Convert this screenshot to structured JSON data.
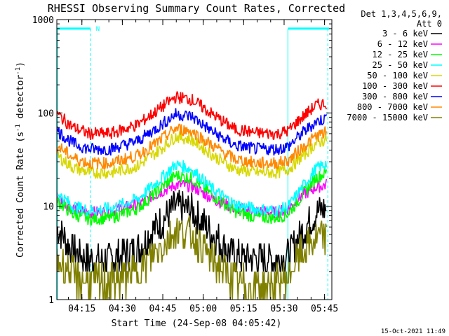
{
  "chart_data": {
    "type": "line",
    "title": "RHESSI Observing Summary Count Rates, Corrected",
    "xlabel": "Start Time (24-Sep-08 04:05:42)",
    "ylabel_main": "Corrected Count Rate (s",
    "ylabel_exp1": "-1",
    "ylabel_mid": " detector",
    "ylabel_exp2": "-1",
    "ylabel_end": ")",
    "y_scale": "log",
    "ylim": [
      1,
      1000
    ],
    "y_ticks": [
      {
        "value": 1,
        "label": "1"
      },
      {
        "value": 10,
        "label": "10"
      },
      {
        "value": 100,
        "label": "100"
      },
      {
        "value": 1000,
        "label": "1000"
      }
    ],
    "xlim_minutes": [
      0,
      102
    ],
    "x_ticks": [
      {
        "minute": 9.3,
        "label": "04:15"
      },
      {
        "minute": 24.3,
        "label": "04:30"
      },
      {
        "minute": 39.3,
        "label": "04:45"
      },
      {
        "minute": 54.3,
        "label": "05:00"
      },
      {
        "minute": 69.3,
        "label": "05:15"
      },
      {
        "minute": 84.3,
        "label": "05:30"
      },
      {
        "minute": 99.3,
        "label": "05:45"
      }
    ],
    "legend_header": [
      "Det 1,3,4,5,6,9,",
      "Att 0"
    ],
    "legend_placement": "right",
    "series": [
      {
        "name": "3 - 6 keV",
        "color": "#000000",
        "x": [
          0,
          6,
          12,
          20,
          30,
          38,
          44,
          50,
          58,
          66,
          74,
          82,
          86,
          90,
          96,
          100
        ],
        "y": [
          6.0,
          3.3,
          2.7,
          2.7,
          3.5,
          6.5,
          9.8,
          9.0,
          5.0,
          2.9,
          2.7,
          2.7,
          3.0,
          4.8,
          8.5,
          9.5
        ]
      },
      {
        "name": "6 - 12 keV",
        "color": "#ff00ff",
        "x": [
          0,
          6,
          12,
          20,
          30,
          38,
          44,
          50,
          58,
          66,
          74,
          82,
          86,
          90,
          96,
          100
        ],
        "y": [
          12.5,
          9.5,
          8.5,
          8.8,
          10.5,
          14.0,
          17.0,
          16.5,
          12.0,
          9.5,
          8.8,
          8.6,
          9.5,
          12.5,
          16.0,
          17.0
        ]
      },
      {
        "name": "12 - 25 keV",
        "color": "#00ff00",
        "x": [
          0,
          6,
          12,
          20,
          30,
          38,
          44,
          50,
          58,
          66,
          74,
          82,
          86,
          90,
          96,
          100
        ],
        "y": [
          11.5,
          8.2,
          7.3,
          7.5,
          9.5,
          15.0,
          21.5,
          20.0,
          13.0,
          8.8,
          7.6,
          7.5,
          8.5,
          12.0,
          20.0,
          23.0
        ]
      },
      {
        "name": "25 - 50 keV",
        "color": "#00ffff",
        "x": [
          0,
          6,
          12,
          20,
          30,
          38,
          44,
          50,
          58,
          66,
          74,
          82,
          86,
          90,
          96,
          100
        ],
        "y": [
          14.0,
          10.0,
          9.0,
          9.5,
          12.0,
          19.0,
          28.0,
          25.0,
          15.0,
          10.5,
          9.3,
          9.0,
          10.0,
          14.5,
          25.0,
          29.0
        ]
      },
      {
        "name": "50 - 100 keV",
        "color": "#d8d800",
        "x": [
          0,
          6,
          12,
          20,
          30,
          38,
          44,
          50,
          58,
          66,
          74,
          82,
          86,
          90,
          96,
          100
        ],
        "y": [
          35.0,
          26.0,
          23.0,
          23.0,
          27.0,
          40.0,
          56.0,
          52.0,
          35.0,
          25.0,
          23.0,
          23.0,
          25.0,
          32.0,
          47.0,
          52.0
        ]
      },
      {
        "name": "100 - 300 keV",
        "color": "#ff0000",
        "x": [
          0,
          6,
          12,
          20,
          30,
          38,
          44,
          50,
          58,
          66,
          74,
          82,
          86,
          90,
          96,
          100
        ],
        "y": [
          98,
          70,
          60,
          60,
          75,
          110,
          148,
          140,
          95,
          67,
          61,
          60,
          65,
          85,
          120,
          128
        ]
      },
      {
        "name": "300 - 800 keV",
        "color": "#0000ff",
        "x": [
          0,
          6,
          12,
          20,
          30,
          38,
          44,
          50,
          58,
          66,
          74,
          82,
          86,
          90,
          96,
          100
        ],
        "y": [
          65,
          47,
          41,
          41,
          50,
          72,
          97,
          92,
          62,
          45,
          41,
          41,
          44,
          57,
          80,
          88
        ]
      },
      {
        "name": "800 - 7000 keV",
        "color": "#ff8800",
        "x": [
          0,
          6,
          12,
          20,
          30,
          38,
          44,
          50,
          58,
          66,
          74,
          82,
          86,
          90,
          96,
          100
        ],
        "y": [
          45,
          33,
          29,
          29,
          35,
          50,
          68,
          64,
          44,
          32,
          29,
          29,
          31,
          40,
          56,
          62
        ]
      },
      {
        "name": "7000 - 15000 keV",
        "color": "#808000",
        "x": [
          0,
          6,
          12,
          20,
          30,
          38,
          44,
          50,
          58,
          66,
          74,
          82,
          86,
          90,
          96,
          100
        ],
        "y": [
          2.6,
          1.8,
          1.5,
          1.6,
          2.0,
          3.5,
          5.5,
          5.0,
          2.6,
          1.6,
          1.4,
          1.5,
          1.8,
          3.0,
          4.5,
          4.8
        ]
      }
    ],
    "annotations": [
      {
        "kind": "flag-bar",
        "color": "#00ffff",
        "x": [
          0,
          12.5
        ],
        "y": 800
      },
      {
        "kind": "flag-bar",
        "color": "#00ffff",
        "x": [
          85.7,
          101
        ],
        "y": 800
      },
      {
        "kind": "dashed-line",
        "color": "#00ffff",
        "x": 12.5
      },
      {
        "kind": "dashed-line",
        "color": "#00ffff",
        "x": 100.5
      },
      {
        "kind": "solid-line",
        "color": "#00ffff",
        "x": 0.3
      },
      {
        "kind": "solid-line",
        "color": "#00ffff",
        "x": 85.7
      },
      {
        "kind": "text",
        "color": "#00ffff",
        "x": 14.5,
        "y": 800,
        "text": "N"
      }
    ],
    "grid": false
  },
  "footer": {
    "timestamp": "15-Oct-2021 11:49"
  }
}
